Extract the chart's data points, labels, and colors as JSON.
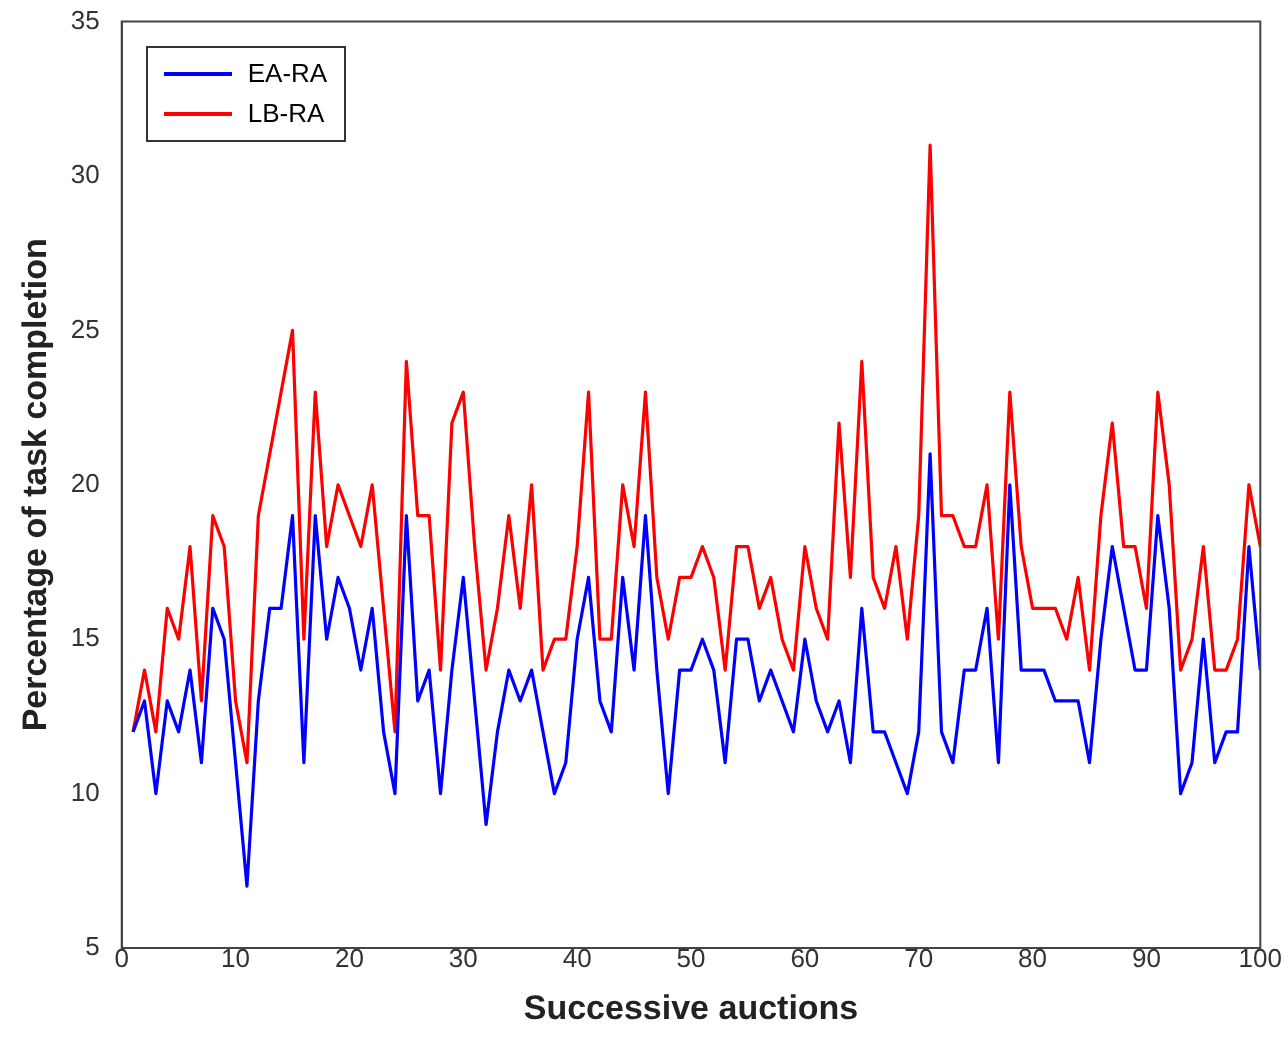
{
  "chart_data": {
    "type": "line",
    "xlabel": "Successive auctions",
    "ylabel": "Percentage of task completion",
    "x": [
      1,
      2,
      3,
      4,
      5,
      6,
      7,
      8,
      9,
      10,
      11,
      12,
      13,
      14,
      15,
      16,
      17,
      18,
      19,
      20,
      21,
      22,
      23,
      24,
      25,
      26,
      27,
      28,
      29,
      30,
      31,
      32,
      33,
      34,
      35,
      36,
      37,
      38,
      39,
      40,
      41,
      42,
      43,
      44,
      45,
      46,
      47,
      48,
      49,
      50,
      51,
      52,
      53,
      54,
      55,
      56,
      57,
      58,
      59,
      60,
      61,
      62,
      63,
      64,
      65,
      66,
      67,
      68,
      69,
      70,
      71,
      72,
      73,
      74,
      75,
      76,
      77,
      78,
      79,
      80,
      81,
      82,
      83,
      84,
      85,
      86,
      87,
      88,
      89,
      90,
      91,
      92,
      93,
      94,
      95,
      96,
      97,
      98,
      99,
      100
    ],
    "series": [
      {
        "name": "EA-RA",
        "color": "#0000ff",
        "values": [
          12,
          13,
          10,
          13,
          12,
          14,
          11,
          16,
          15,
          11,
          7,
          13,
          16,
          16,
          19,
          11,
          19,
          15,
          17,
          16,
          14,
          16,
          12,
          10,
          19,
          13,
          14,
          10,
          14,
          17,
          13,
          9,
          12,
          14,
          13,
          14,
          12,
          10,
          11,
          15,
          17,
          13,
          12,
          17,
          14,
          19,
          14,
          10,
          14,
          14,
          15,
          14,
          11,
          15,
          15,
          13,
          14,
          13,
          12,
          15,
          13,
          12,
          13,
          11,
          16,
          12,
          12,
          11,
          10,
          12,
          21,
          12,
          11,
          14,
          14,
          16,
          11,
          20,
          14,
          14,
          14,
          13,
          13,
          13,
          11,
          15,
          18,
          16,
          14,
          14,
          19,
          16,
          10,
          11,
          15,
          11,
          12,
          12,
          18,
          14
        ]
      },
      {
        "name": "LB-RA",
        "color": "#ff0000",
        "values": [
          12,
          14,
          12,
          16,
          15,
          18,
          13,
          19,
          18,
          13,
          11,
          19,
          21,
          23,
          25,
          15,
          23,
          18,
          20,
          19,
          18,
          20,
          16,
          12,
          24,
          19,
          19,
          14,
          22,
          23,
          18,
          14,
          16,
          19,
          16,
          20,
          14,
          15,
          15,
          18,
          23,
          15,
          15,
          20,
          18,
          23,
          17,
          15,
          17,
          17,
          18,
          17,
          14,
          18,
          18,
          16,
          17,
          15,
          14,
          18,
          16,
          15,
          22,
          17,
          24,
          17,
          16,
          18,
          15,
          19,
          31,
          19,
          19,
          18,
          18,
          20,
          15,
          23,
          18,
          16,
          16,
          16,
          15,
          17,
          14,
          19,
          22,
          18,
          18,
          16,
          23,
          20,
          14,
          15,
          18,
          14,
          14,
          15,
          20,
          18
        ]
      }
    ],
    "xlim": [
      0,
      100
    ],
    "xticks": [
      0,
      10,
      20,
      30,
      40,
      50,
      60,
      70,
      80,
      90,
      100
    ],
    "ylim": [
      5,
      35
    ],
    "yticks": [
      5,
      10,
      15,
      20,
      25,
      30,
      35
    ],
    "legend": "top left",
    "grid": false,
    "marker": "none",
    "line_style": "solid"
  }
}
